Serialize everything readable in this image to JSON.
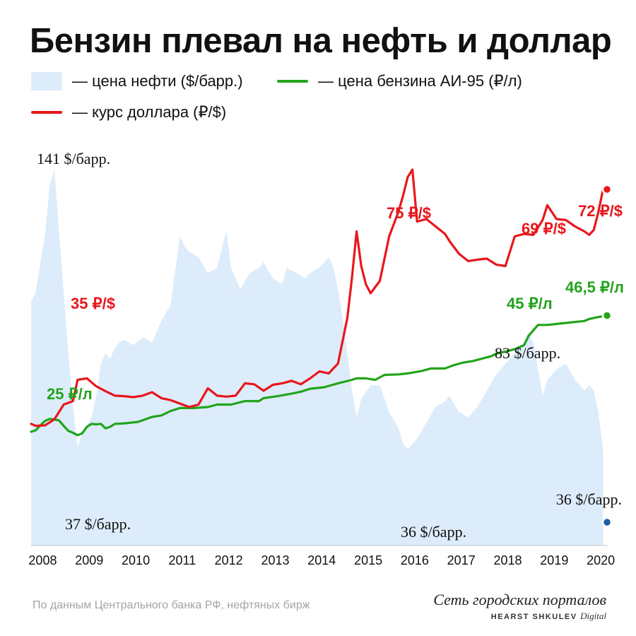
{
  "header": {
    "title": "Бензин плевал на нефть и доллар"
  },
  "legend": [
    {
      "label": "— цена нефти ($/барр.)",
      "color": "#ddecfa",
      "kind": "area"
    },
    {
      "label": "— цена бензина АИ-95 (₽/л)",
      "color": "#22a41c",
      "kind": "line"
    },
    {
      "label": "— курс доллара (₽/$)",
      "color": "#e8171c",
      "kind": "line"
    }
  ],
  "footer": {
    "source": "По данным Центрального банка РФ, нефтяных бирж",
    "brand_name": "Сеть городских порталов",
    "brand_sub": "HEARST SHKULEV",
    "brand_sub2": "Digital"
  },
  "chart_data": {
    "type": "line",
    "x_ticks": [
      "2008",
      "2009",
      "2010",
      "2011",
      "2012",
      "2013",
      "2014",
      "2015",
      "2016",
      "2017",
      "2018",
      "2019",
      "2020"
    ],
    "xlim": [
      2008.0,
      2020.4
    ],
    "oil_ylim": [
      0,
      147
    ],
    "rub_ylim": [
      0,
      110
    ],
    "grid": false,
    "legend_position": "top",
    "series": [
      {
        "name": "цена нефти ($/барр.)",
        "kind": "area",
        "color": "#ddecfa",
        "x": [
          2008.0,
          2008.1,
          2008.2,
          2008.3,
          2008.4,
          2008.5,
          2008.6,
          2008.7,
          2008.8,
          2008.9,
          2009.0,
          2009.1,
          2009.2,
          2009.3,
          2009.4,
          2009.5,
          2009.6,
          2009.7,
          2009.8,
          2009.9,
          2010.0,
          2010.2,
          2010.4,
          2010.6,
          2010.8,
          2011.0,
          2011.2,
          2011.3,
          2011.4,
          2011.6,
          2011.8,
          2012.0,
          2012.2,
          2012.3,
          2012.5,
          2012.7,
          2012.9,
          2013.0,
          2013.2,
          2013.4,
          2013.5,
          2013.7,
          2013.9,
          2014.0,
          2014.2,
          2014.4,
          2014.5,
          2014.6,
          2014.7,
          2014.8,
          2014.9,
          2015.0,
          2015.1,
          2015.3,
          2015.5,
          2015.7,
          2015.9,
          2016.0,
          2016.1,
          2016.3,
          2016.5,
          2016.7,
          2016.9,
          2017.0,
          2017.2,
          2017.4,
          2017.6,
          2017.8,
          2018.0,
          2018.2,
          2018.4,
          2018.6,
          2018.7,
          2018.8,
          2018.9,
          2019.0,
          2019.1,
          2019.3,
          2019.5,
          2019.7,
          2019.9,
          2020.0,
          2020.1,
          2020.2,
          2020.3
        ],
        "values": [
          91,
          95,
          106,
          116,
          135,
          141,
          118,
          95,
          72,
          52,
          37,
          42,
          45,
          48,
          56,
          68,
          72,
          70,
          74,
          76,
          77,
          75,
          78,
          76,
          84,
          90,
          116,
          112,
          110,
          108,
          102,
          104,
          118,
          104,
          96,
          102,
          104,
          106,
          100,
          98,
          104,
          102,
          100,
          102,
          104,
          108,
          104,
          96,
          85,
          72,
          58,
          48,
          55,
          60,
          60,
          50,
          44,
          38,
          36,
          40,
          46,
          52,
          54,
          56,
          50,
          48,
          52,
          58,
          64,
          68,
          72,
          76,
          80,
          76,
          66,
          56,
          62,
          66,
          68,
          62,
          58,
          60,
          58,
          50,
          36
        ]
      },
      {
        "name": "цена бензина АИ-95 (₽/л)",
        "kind": "line",
        "color": "#22a41c",
        "x": [
          2008.0,
          2008.1,
          2008.2,
          2008.3,
          2008.4,
          2008.5,
          2008.6,
          2008.7,
          2008.8,
          2008.9,
          2009.0,
          2009.1,
          2009.2,
          2009.3,
          2009.4,
          2009.5,
          2009.6,
          2009.7,
          2009.8,
          2010.0,
          2010.3,
          2010.6,
          2010.8,
          2011.0,
          2011.2,
          2011.5,
          2011.8,
          2012.0,
          2012.3,
          2012.6,
          2012.9,
          2013.0,
          2013.3,
          2013.6,
          2013.8,
          2014.0,
          2014.3,
          2014.6,
          2014.9,
          2015.0,
          2015.2,
          2015.4,
          2015.6,
          2015.9,
          2016.1,
          2016.4,
          2016.6,
          2016.9,
          2017.1,
          2017.3,
          2017.5,
          2017.7,
          2017.9,
          2018.0,
          2018.2,
          2018.4,
          2018.6,
          2018.7,
          2018.9,
          2019.1,
          2019.3,
          2019.5,
          2019.7,
          2019.9,
          2020.0,
          2020.2,
          2020.4
        ],
        "values": [
          23,
          23.3,
          24.3,
          25.2,
          25.6,
          25.5,
          25.3,
          24.2,
          23.2,
          22.8,
          22.3,
          22.7,
          24,
          24.6,
          24.5,
          24.6,
          23.7,
          24,
          24.6,
          24.7,
          25,
          26,
          26.3,
          27.2,
          27.8,
          27.8,
          28,
          28.5,
          28.5,
          29.2,
          29.2,
          29.8,
          30.2,
          30.7,
          31.1,
          31.7,
          32,
          32.8,
          33.5,
          33.8,
          33.8,
          33.5,
          34.5,
          34.6,
          34.8,
          35.3,
          35.8,
          35.8,
          36.5,
          37,
          37.3,
          37.8,
          38.3,
          38.8,
          39.2,
          39.7,
          40.5,
          42.4,
          44.6,
          44.6,
          44.8,
          45,
          45.2,
          45.4,
          45.8,
          46.2,
          46.5
        ]
      },
      {
        "name": "курс доллара (₽/$)",
        "kind": "line",
        "color": "#e8171c",
        "x": [
          2008.0,
          2008.1,
          2008.3,
          2008.5,
          2008.7,
          2008.9,
          2009.0,
          2009.2,
          2009.4,
          2009.6,
          2009.8,
          2010.0,
          2010.2,
          2010.4,
          2010.6,
          2010.8,
          2011.0,
          2011.2,
          2011.4,
          2011.6,
          2011.8,
          2012.0,
          2012.2,
          2012.4,
          2012.6,
          2012.8,
          2013.0,
          2013.2,
          2013.4,
          2013.6,
          2013.8,
          2014.0,
          2014.2,
          2014.4,
          2014.6,
          2014.8,
          2014.9,
          2015.0,
          2015.1,
          2015.2,
          2015.3,
          2015.5,
          2015.7,
          2015.9,
          2016.0,
          2016.1,
          2016.2,
          2016.3,
          2016.5,
          2016.7,
          2016.9,
          2017.0,
          2017.2,
          2017.4,
          2017.6,
          2017.8,
          2018.0,
          2018.2,
          2018.4,
          2018.6,
          2018.8,
          2019.0,
          2019.1,
          2019.3,
          2019.5,
          2019.7,
          2019.9,
          2020.0,
          2020.1,
          2020.2,
          2020.3
        ],
        "values": [
          24.6,
          24.2,
          24.3,
          25.5,
          28.5,
          29.2,
          33.5,
          33.8,
          32.2,
          31.2,
          30.3,
          30.2,
          30,
          30.3,
          31,
          29.8,
          29.4,
          28.7,
          28,
          28.5,
          31.8,
          30.3,
          30.1,
          30.3,
          32.8,
          32.6,
          31.3,
          32.5,
          32.8,
          33.3,
          32.6,
          33.8,
          35.2,
          34.8,
          36.8,
          46,
          54.2,
          63.5,
          56.5,
          52.8,
          51,
          53.5,
          62.5,
          67.5,
          70.8,
          74.5,
          76,
          65.5,
          66,
          64.5,
          63,
          61.5,
          59,
          57.5,
          57.8,
          58,
          56.8,
          56.5,
          62.5,
          63,
          62.8,
          65.8,
          68.8,
          66,
          65.8,
          64.5,
          63.5,
          62.8,
          63.8,
          67.5,
          72
        ]
      }
    ],
    "annotations": [
      {
        "text": "141 $/барр.",
        "color": "#111111"
      },
      {
        "text": "37 $/барр.",
        "color": "#111111"
      },
      {
        "text": "36 $/барр.",
        "color": "#111111"
      },
      {
        "text": "36 $/барр.",
        "color": "#111111"
      },
      {
        "text": "83 $/барр.",
        "color": "#111111"
      },
      {
        "text": "35 ₽/$",
        "color": "#e8171c"
      },
      {
        "text": "75 ₽/$",
        "color": "#e8171c"
      },
      {
        "text": "69 ₽/$",
        "color": "#e8171c"
      },
      {
        "text": "72 ₽/$",
        "color": "#e8171c"
      },
      {
        "text": "25 ₽/л",
        "color": "#22a41c"
      },
      {
        "text": "45 ₽/л",
        "color": "#22a41c"
      },
      {
        "text": "46,5 ₽/л",
        "color": "#22a41c"
      }
    ],
    "end_markers": [
      {
        "series": 0,
        "value": 36,
        "color": "#1c5ea8"
      },
      {
        "series": 1,
        "value": 46.5,
        "color": "#22a41c"
      },
      {
        "series": 2,
        "value": 72,
        "color": "#e8171c"
      }
    ]
  }
}
